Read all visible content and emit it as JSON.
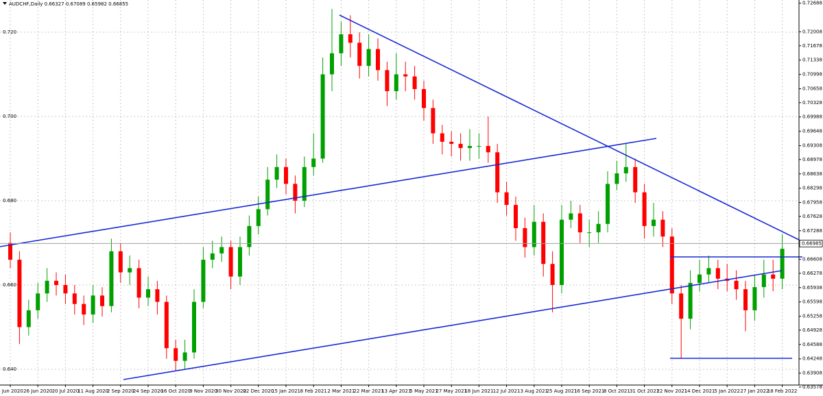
{
  "chart_data": {
    "type": "candlestick",
    "title": "AUDCHF,Daily  0.66327 0.67089 0.65982 0.66855",
    "categories": [
      "4 Jun 2020",
      null,
      null,
      "26 Jun 2020",
      null,
      null,
      "20 Jul 2020",
      null,
      null,
      "11 Aug 2020",
      null,
      null,
      "2 Sep 2020",
      null,
      null,
      "24 Sep 2020",
      null,
      null,
      "16 Oct 2020",
      null,
      null,
      "9 Nov 2020",
      null,
      null,
      "30 Nov 2020",
      null,
      null,
      "22 Dec 2020",
      null,
      null,
      "15 Jan 2021",
      null,
      null,
      "8 Feb 2021",
      null,
      null,
      "2 Mar 2021",
      null,
      null,
      "22 Mar 2021",
      null,
      null,
      "13 Apr 2021",
      null,
      null,
      "5 May 2021",
      null,
      null,
      "27 May 2021",
      null,
      null,
      "18 Jun 2021",
      null,
      null,
      "12 Jul 2021",
      null,
      null,
      "3 Aug 2021",
      null,
      null,
      "25 Aug 2021",
      null,
      null,
      "16 Sep 2021",
      null,
      null,
      "8 Oct 2021",
      null,
      null,
      "31 Oct 2021",
      null,
      null,
      "22 Nov 2021",
      null,
      null,
      "14 Dec 2021",
      null,
      null,
      "5 Jan 2022",
      null,
      null,
      "27 Jan 2022",
      null,
      null,
      "18 Feb 2022"
    ],
    "open": [
      0.67,
      0.666,
      0.65,
      0.654,
      0.658,
      0.661,
      0.66,
      0.658,
      0.6555,
      0.653,
      0.6575,
      0.655,
      0.668,
      0.663,
      0.664,
      0.657,
      0.659,
      0.656,
      0.645,
      0.642,
      0.644,
      0.656,
      0.666,
      0.6675,
      0.669,
      0.662,
      0.669,
      0.674,
      0.678,
      0.685,
      0.688,
      0.684,
      0.68,
      0.688,
      0.69,
      0.71,
      0.715,
      0.7195,
      0.7175,
      0.712,
      0.716,
      0.711,
      0.706,
      0.71,
      0.7095,
      0.7065,
      0.702,
      0.696,
      0.694,
      0.6935,
      0.6925,
      0.693,
      0.693,
      0.6915,
      0.682,
      0.679,
      0.6735,
      0.669,
      0.675,
      0.665,
      0.66,
      0.6755,
      0.677,
      0.6725,
      0.6725,
      0.6745,
      0.684,
      0.6865,
      0.688,
      0.682,
      0.674,
      0.6755,
      0.6715,
      0.658,
      0.652,
      0.6605,
      0.6625,
      0.664,
      0.6615,
      0.661,
      0.659,
      0.654,
      0.6595,
      0.6625,
      0.6615
    ],
    "high": [
      0.6725,
      0.668,
      0.6565,
      0.6605,
      0.664,
      0.663,
      0.6625,
      0.66,
      0.6575,
      0.66,
      0.6595,
      0.671,
      0.67,
      0.667,
      0.666,
      0.662,
      0.661,
      0.6575,
      0.647,
      0.647,
      0.659,
      0.669,
      0.6705,
      0.6715,
      0.6705,
      0.6715,
      0.6765,
      0.681,
      0.688,
      0.691,
      0.69,
      0.686,
      0.6905,
      0.696,
      0.714,
      0.7255,
      0.7225,
      0.724,
      0.72,
      0.7195,
      0.7185,
      0.713,
      0.715,
      0.713,
      0.712,
      0.7085,
      0.704,
      0.698,
      0.6965,
      0.696,
      0.697,
      0.696,
      0.7,
      0.6935,
      0.6845,
      0.681,
      0.676,
      0.679,
      0.677,
      0.668,
      0.679,
      0.68,
      0.679,
      0.6755,
      0.6775,
      0.687,
      0.6895,
      0.6935,
      0.69,
      0.684,
      0.6795,
      0.6775,
      0.6735,
      0.66,
      0.6635,
      0.666,
      0.667,
      0.666,
      0.665,
      0.6635,
      0.661,
      0.6625,
      0.666,
      0.666,
      0.672
    ],
    "low": [
      0.664,
      0.646,
      0.648,
      0.652,
      0.656,
      0.6575,
      0.6555,
      0.653,
      0.6505,
      0.651,
      0.6525,
      0.6535,
      0.6605,
      0.66,
      0.6545,
      0.655,
      0.653,
      0.6425,
      0.6395,
      0.64,
      0.6425,
      0.6545,
      0.664,
      0.6655,
      0.659,
      0.66,
      0.667,
      0.672,
      0.6765,
      0.683,
      0.6815,
      0.677,
      0.6785,
      0.686,
      0.689,
      0.706,
      0.712,
      0.714,
      0.709,
      0.7095,
      0.7085,
      0.7025,
      0.704,
      0.706,
      0.704,
      0.699,
      0.6935,
      0.691,
      0.6905,
      0.6895,
      0.6895,
      0.69,
      0.689,
      0.6795,
      0.6765,
      0.6705,
      0.6665,
      0.667,
      0.662,
      0.6535,
      0.658,
      0.6735,
      0.67,
      0.669,
      0.67,
      0.6725,
      0.6825,
      0.6845,
      0.6795,
      0.671,
      0.6715,
      0.669,
      0.6555,
      0.6425,
      0.6495,
      0.6585,
      0.6605,
      0.659,
      0.6585,
      0.6565,
      0.649,
      0.6515,
      0.657,
      0.6585,
      0.659
    ],
    "close": [
      0.666,
      0.65,
      0.654,
      0.658,
      0.661,
      0.66,
      0.658,
      0.6555,
      0.653,
      0.6575,
      0.655,
      0.668,
      0.663,
      0.664,
      0.657,
      0.659,
      0.656,
      0.645,
      0.642,
      0.644,
      0.656,
      0.666,
      0.6675,
      0.669,
      0.662,
      0.669,
      0.674,
      0.678,
      0.685,
      0.688,
      0.684,
      0.68,
      0.688,
      0.69,
      0.71,
      0.715,
      0.7195,
      0.7175,
      0.712,
      0.716,
      0.711,
      0.706,
      0.71,
      0.7095,
      0.7065,
      0.702,
      0.696,
      0.694,
      0.6935,
      0.6925,
      0.693,
      0.693,
      0.6915,
      0.682,
      0.679,
      0.6735,
      0.669,
      0.675,
      0.665,
      0.66,
      0.6755,
      0.677,
      0.6725,
      0.6725,
      0.6745,
      0.684,
      0.6865,
      0.688,
      0.682,
      0.674,
      0.6755,
      0.6715,
      0.658,
      0.652,
      0.6605,
      0.6625,
      0.664,
      0.6615,
      0.661,
      0.659,
      0.654,
      0.6595,
      0.6625,
      0.6615,
      0.6686
    ],
    "up_color": "#00a000",
    "down_color": "#ff0000",
    "ylim": [
      0.63626,
      0.72764
    ],
    "yticks": [
      {
        "value": 0.72,
        "label": "0.720"
      },
      {
        "value": 0.7,
        "label": "0.700"
      },
      {
        "value": 0.68,
        "label": "0.680"
      },
      {
        "value": 0.66,
        "label": "0.660"
      },
      {
        "value": 0.64,
        "label": "0.640"
      }
    ],
    "y2ticks": [
      0.72688,
      0.72008,
      0.71678,
      0.71338,
      0.70998,
      0.70658,
      0.70328,
      0.69988,
      0.69648,
      0.69308,
      0.68978,
      0.68638,
      0.68298,
      0.67958,
      0.67628,
      0.67288,
      0.66608,
      0.66278,
      0.65938,
      0.65598,
      0.65258,
      0.64928,
      0.64588,
      0.64248,
      0.63908,
      0.63578
    ],
    "last_price": 0.66985,
    "grid": true
  }
}
